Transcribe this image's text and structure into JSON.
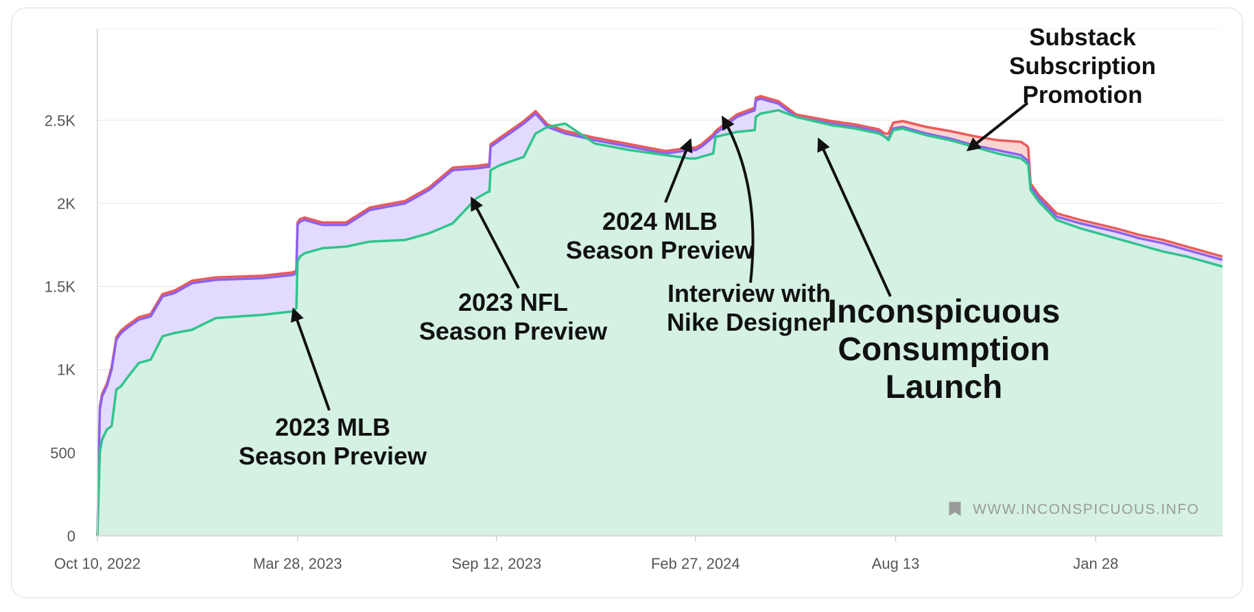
{
  "chart_data": {
    "type": "area",
    "title": "",
    "xlabel": "",
    "ylabel": "",
    "ylim": [
      0,
      3050
    ],
    "yticks": [
      0,
      500,
      1000,
      1500,
      2000,
      2500
    ],
    "ytick_labels": [
      "0",
      "500",
      "1K",
      "1.5K",
      "2K",
      "2.5K"
    ],
    "xlim_days": [
      0,
      950
    ],
    "xticks_days": [
      0,
      169,
      337,
      505,
      674,
      843
    ],
    "xtick_labels": [
      "Oct 10, 2022",
      "Mar 28, 2023",
      "Sep 12, 2023",
      "Feb 27, 2024",
      "Aug 13",
      "Jan 28"
    ],
    "colors": {
      "green": "#2fc48a",
      "purple": "#8a62f0",
      "red": "#ea5a5a",
      "green_fill": "#d4f1e3",
      "purple_fill": "#e2dbff",
      "red_fill": "#f9d4d0"
    },
    "series": [
      {
        "name": "green",
        "x": [
          0,
          2,
          4,
          8,
          12,
          16,
          20,
          25,
          35,
          45,
          55,
          65,
          80,
          100,
          140,
          165,
          168,
          169,
          171,
          175,
          190,
          210,
          230,
          260,
          280,
          300,
          320,
          330,
          331,
          332,
          340,
          360,
          370,
          380,
          395,
          420,
          450,
          480,
          500,
          505,
          510,
          520,
          522,
          540,
          555,
          556,
          560,
          575,
          590,
          620,
          640,
          660,
          665,
          668,
          672,
          680,
          700,
          720,
          740,
          760,
          780,
          785,
          786,
          788,
          795,
          810,
          830,
          860,
          880,
          900,
          920,
          950
        ],
        "y": [
          0,
          500,
          580,
          640,
          660,
          880,
          900,
          950,
          1040,
          1060,
          1200,
          1220,
          1240,
          1310,
          1330,
          1350,
          1370,
          1650,
          1680,
          1700,
          1730,
          1740,
          1770,
          1780,
          1820,
          1880,
          2030,
          2070,
          2070,
          2200,
          2230,
          2280,
          2420,
          2460,
          2480,
          2360,
          2320,
          2290,
          2270,
          2270,
          2280,
          2300,
          2400,
          2430,
          2440,
          2520,
          2540,
          2560,
          2520,
          2470,
          2450,
          2420,
          2400,
          2380,
          2440,
          2450,
          2410,
          2380,
          2340,
          2300,
          2270,
          2240,
          2230,
          2080,
          2010,
          1900,
          1850,
          1790,
          1750,
          1710,
          1680,
          1620
        ]
      },
      {
        "name": "purple",
        "x": [
          0,
          2,
          4,
          8,
          12,
          16,
          20,
          25,
          35,
          45,
          55,
          65,
          80,
          100,
          140,
          165,
          168,
          169,
          171,
          175,
          190,
          210,
          230,
          260,
          280,
          300,
          320,
          330,
          331,
          332,
          340,
          360,
          370,
          380,
          395,
          420,
          450,
          480,
          500,
          505,
          510,
          520,
          522,
          540,
          555,
          556,
          560,
          575,
          590,
          620,
          640,
          660,
          665,
          668,
          672,
          680,
          700,
          720,
          740,
          760,
          780,
          785,
          786,
          788,
          795,
          810,
          830,
          860,
          880,
          900,
          920,
          950
        ],
        "y": [
          0,
          760,
          840,
          900,
          1000,
          1180,
          1220,
          1250,
          1300,
          1320,
          1440,
          1460,
          1520,
          1540,
          1550,
          1570,
          1580,
          1870,
          1890,
          1900,
          1870,
          1870,
          1960,
          2000,
          2080,
          2200,
          2210,
          2220,
          2220,
          2340,
          2380,
          2480,
          2540,
          2460,
          2420,
          2380,
          2340,
          2300,
          2320,
          2320,
          2340,
          2400,
          2420,
          2520,
          2560,
          2620,
          2630,
          2600,
          2520,
          2480,
          2460,
          2430,
          2400,
          2390,
          2450,
          2460,
          2420,
          2390,
          2350,
          2320,
          2290,
          2260,
          2250,
          2100,
          2030,
          1920,
          1880,
          1830,
          1790,
          1760,
          1720,
          1660
        ]
      },
      {
        "name": "red",
        "x": [
          0,
          2,
          4,
          8,
          12,
          16,
          20,
          25,
          35,
          45,
          55,
          65,
          80,
          100,
          140,
          165,
          168,
          169,
          171,
          175,
          190,
          210,
          230,
          260,
          280,
          300,
          320,
          330,
          331,
          332,
          340,
          360,
          370,
          380,
          395,
          420,
          450,
          480,
          500,
          505,
          510,
          520,
          522,
          540,
          555,
          556,
          560,
          575,
          590,
          620,
          640,
          660,
          665,
          668,
          672,
          680,
          700,
          720,
          740,
          760,
          780,
          785,
          786,
          788,
          795,
          810,
          830,
          860,
          880,
          900,
          920,
          950
        ],
        "y": [
          0,
          775,
          855,
          915,
          1015,
          1195,
          1235,
          1265,
          1315,
          1335,
          1455,
          1475,
          1535,
          1555,
          1565,
          1585,
          1595,
          1885,
          1905,
          1915,
          1885,
          1885,
          1975,
          2015,
          2095,
          2215,
          2225,
          2235,
          2235,
          2355,
          2395,
          2495,
          2555,
          2475,
          2435,
          2395,
          2355,
          2315,
          2335,
          2335,
          2355,
          2415,
          2435,
          2535,
          2575,
          2635,
          2645,
          2615,
          2535,
          2495,
          2475,
          2445,
          2420,
          2420,
          2485,
          2495,
          2460,
          2435,
          2405,
          2380,
          2370,
          2345,
          2335,
          2120,
          2050,
          1940,
          1900,
          1850,
          1810,
          1780,
          1740,
          1680
        ]
      }
    ],
    "annotations": [
      {
        "lines": [
          "2023 MLB",
          "Season Preview"
        ]
      },
      {
        "lines": [
          "2023 NFL",
          "Season Preview"
        ]
      },
      {
        "lines": [
          "2024 MLB",
          "Season Preview"
        ]
      },
      {
        "lines": [
          "Interview with",
          "Nike Designer"
        ]
      },
      {
        "lines": [
          "Inconspicuous",
          "Consumption",
          "Launch"
        ]
      },
      {
        "lines": [
          "Substack",
          "Subscription",
          "Promotion"
        ]
      }
    ]
  },
  "watermark": {
    "text": "WWW.INCONSPICUOUS.INFO",
    "icon": "bookmark-icon"
  }
}
